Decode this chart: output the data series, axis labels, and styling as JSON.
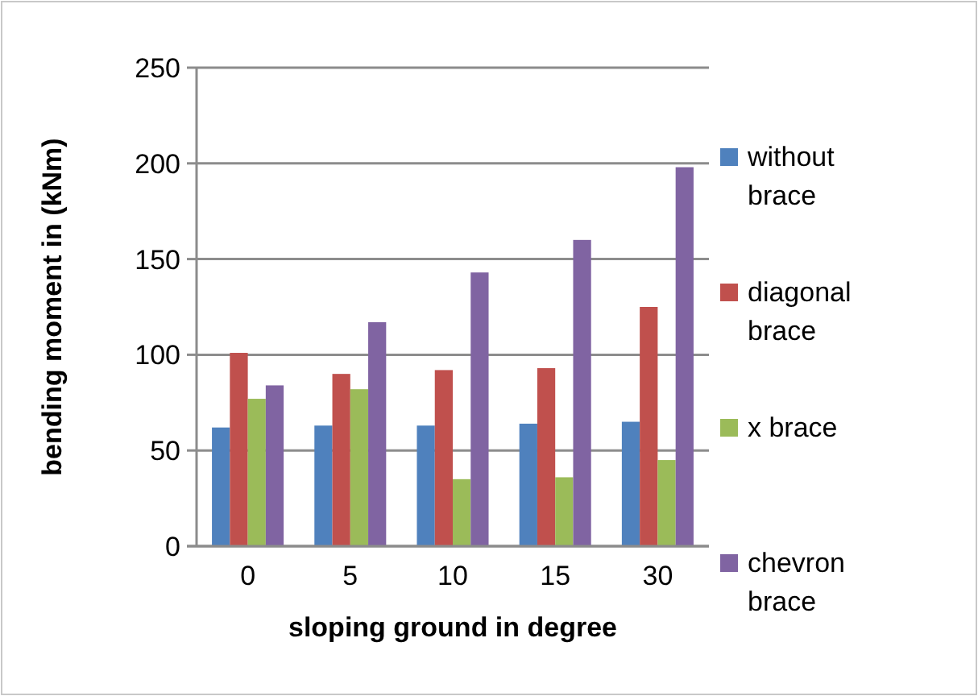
{
  "chart_data": {
    "type": "bar",
    "xlabel": "sloping ground in degree",
    "ylabel": "bending moment in (kNm)",
    "categories": [
      "0",
      "5",
      "10",
      "15",
      "30"
    ],
    "series": [
      {
        "name": "without brace",
        "color": "#4f81bd",
        "values": [
          62,
          63,
          63,
          64,
          65
        ]
      },
      {
        "name": "diagonal brace",
        "color": "#c0504d",
        "values": [
          101,
          90,
          92,
          93,
          125
        ]
      },
      {
        "name": "x brace",
        "color": "#9bbb59",
        "values": [
          77,
          82,
          35,
          36,
          45
        ]
      },
      {
        "name": "chevron brace",
        "color": "#8064a2",
        "values": [
          84,
          117,
          143,
          160,
          198
        ]
      }
    ],
    "ylim": [
      0,
      250
    ],
    "yticks": [
      0,
      50,
      100,
      150,
      200,
      250
    ],
    "grid": "y",
    "legend": "right"
  }
}
